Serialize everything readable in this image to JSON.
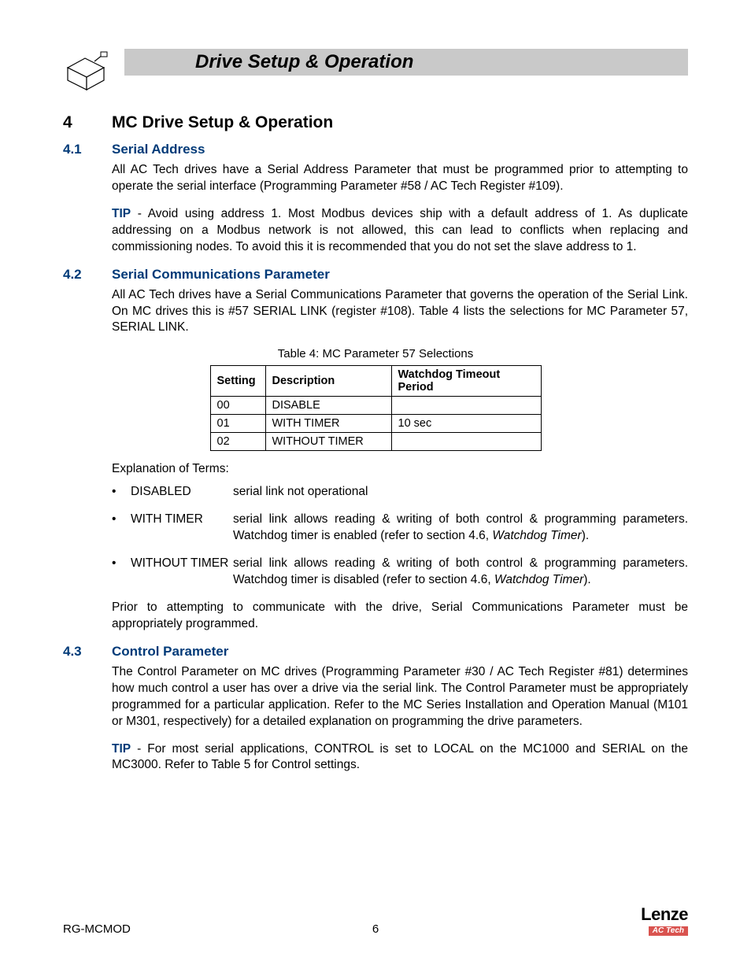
{
  "header": {
    "title": "Drive Setup & Operation"
  },
  "section": {
    "num": "4",
    "title": "MC Drive Setup & Operation"
  },
  "sub41": {
    "num": "4.1",
    "title": "Serial Address",
    "p1": "All AC Tech drives have a Serial Address Parameter that must be programmed prior to attempting to operate the serial interface (Programming Parameter #58 / AC Tech Register #109).",
    "tip_label": "TIP",
    "tip_text": " - Avoid using address 1. Most Modbus devices ship with a default address of 1. As duplicate addressing on a Modbus network is not allowed, this can lead to conflicts when replacing and commissioning nodes. To avoid this it is recommended that you do not set the slave address to 1."
  },
  "sub42": {
    "num": "4.2",
    "title": "Serial Communications Parameter",
    "p1": "All AC Tech drives have a Serial Communications Parameter that governs the operation of the Serial Link. On MC drives this is #57 SERIAL LINK (register #108). Table 4 lists the selections for MC Parameter 57, SERIAL LINK.",
    "table_caption": "Table 4: MC Parameter 57 Selections",
    "table": {
      "headers": [
        "Setting",
        "Description",
        "Watchdog Timeout Period"
      ],
      "col_widths": [
        "70px",
        "160px",
        "190px"
      ],
      "rows": [
        [
          "00",
          "DISABLE",
          ""
        ],
        [
          "01",
          "WITH TIMER",
          "10 sec"
        ],
        [
          "02",
          "WITHOUT TIMER",
          ""
        ]
      ]
    },
    "terms_intro": "Explanation of Terms:",
    "terms": [
      {
        "term": "DISABLED",
        "def_pre": "serial link not operational",
        "def_ital": "",
        "def_post": ""
      },
      {
        "term": "WITH TIMER",
        "def_pre": "serial link allows reading & writing of both control & programming parameters. Watchdog timer is enabled (refer to section 4.6, ",
        "def_ital": "Watchdog Timer",
        "def_post": ")."
      },
      {
        "term": "WITHOUT TIMER",
        "def_pre": "serial link allows reading & writing of both control & programming parameters. Watchdog timer is disabled (refer to section 4.6, ",
        "def_ital": "Watchdog Timer",
        "def_post": ")."
      }
    ],
    "p_after": "Prior to attempting to communicate with the drive, Serial Communications Parameter must be appropriately programmed."
  },
  "sub43": {
    "num": "4.3",
    "title": "Control Parameter",
    "p1": "The Control Parameter on MC drives (Programming Parameter #30 / AC Tech Register #81) determines how much control a user has over a drive via the serial link. The Control Parameter must be appropriately programmed for a particular application. Refer to the MC Series Installation and Operation Manual (M101 or M301, respectively) for a detailed explanation on programming the drive parameters.",
    "tip_label": "TIP",
    "tip_text": " - For most serial applications, CONTROL is set to LOCAL on the MC1000 and SERIAL on the MC3000. Refer to Table 5 for Control settings."
  },
  "footer": {
    "doc_id": "RG-MCMOD",
    "page": "6",
    "logo_main": "Lenze",
    "logo_sub": "AC Tech"
  },
  "colors": {
    "accent": "#003a78",
    "header_bg": "#c9c9c9",
    "logo_sub_bg": "#d9534f"
  }
}
